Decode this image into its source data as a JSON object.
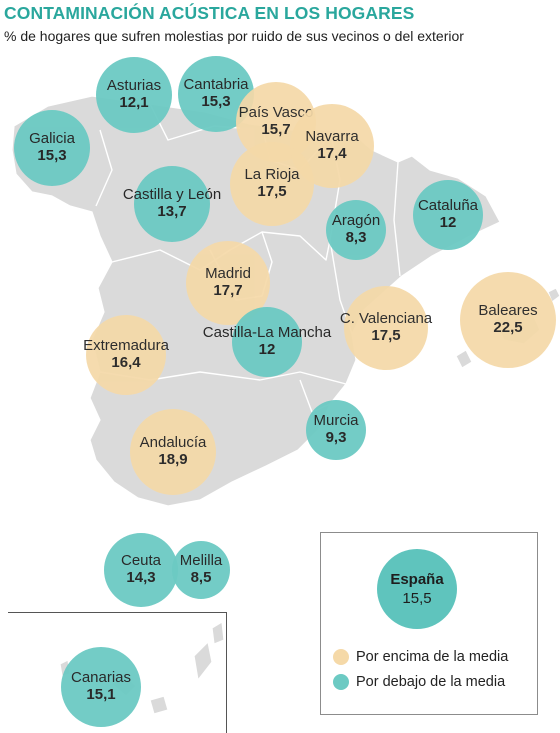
{
  "header": {
    "title": "CONTAMINACIÓN ACÚSTICA EN LOS HOGARES",
    "subtitle": "% de hogares que sufren molestias por ruido de sus vecinos o del exterior"
  },
  "colors": {
    "above": "#f5d9a8",
    "below": "#6ccac3",
    "land": "#dadada",
    "title": "#2aa79d"
  },
  "regions": [
    {
      "name": "Asturias",
      "value": "12,1",
      "category": "below"
    },
    {
      "name": "Cantabria",
      "value": "15,3",
      "category": "below"
    },
    {
      "name": "País Vasco",
      "value": "15,7",
      "category": "above"
    },
    {
      "name": "Navarra",
      "value": "17,4",
      "category": "above"
    },
    {
      "name": "Galicia",
      "value": "15,3",
      "category": "below"
    },
    {
      "name": "La Rioja",
      "value": "17,5",
      "category": "above"
    },
    {
      "name": "Castilla y León",
      "value": "13,7",
      "category": "below"
    },
    {
      "name": "Aragón",
      "value": "8,3",
      "category": "below"
    },
    {
      "name": "Cataluña",
      "value": "12",
      "category": "below"
    },
    {
      "name": "Madrid",
      "value": "17,7",
      "category": "above"
    },
    {
      "name": "C. Valenciana",
      "value": "17,5",
      "category": "above"
    },
    {
      "name": "Baleares",
      "value": "22,5",
      "category": "above"
    },
    {
      "name": "Extremadura",
      "value": "16,4",
      "category": "above"
    },
    {
      "name": "Castilla-La Mancha",
      "value": "12",
      "category": "below"
    },
    {
      "name": "Murcia",
      "value": "9,3",
      "category": "below"
    },
    {
      "name": "Andalucía",
      "value": "18,9",
      "category": "above"
    },
    {
      "name": "Ceuta",
      "value": "14,3",
      "category": "below"
    },
    {
      "name": "Melilla",
      "value": "8,5",
      "category": "below"
    },
    {
      "name": "Canarias",
      "value": "15,1",
      "category": "below"
    }
  ],
  "legend": {
    "national_name": "España",
    "national_value": "15,5",
    "above_label": "Por encima de la media",
    "below_label": "Por debajo de la media"
  }
}
